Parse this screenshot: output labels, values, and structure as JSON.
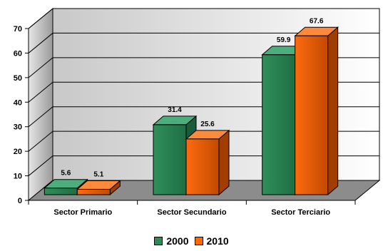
{
  "chart_data": {
    "type": "bar",
    "categories": [
      "Sector Primario",
      "Sector Secundario",
      "Sector Terciario"
    ],
    "series": [
      {
        "name": "2000",
        "values": [
          5.6,
          31.4,
          59.9
        ],
        "color": "#2e8b57"
      },
      {
        "name": "2010",
        "values": [
          5.1,
          25.6,
          67.6
        ],
        "color": "#ff6a00"
      }
    ],
    "ylim": [
      0,
      70
    ],
    "yticks": [
      0,
      10,
      20,
      30,
      40,
      50,
      60,
      70
    ],
    "grid": true,
    "three_d": true,
    "legend_position": "bottom"
  }
}
